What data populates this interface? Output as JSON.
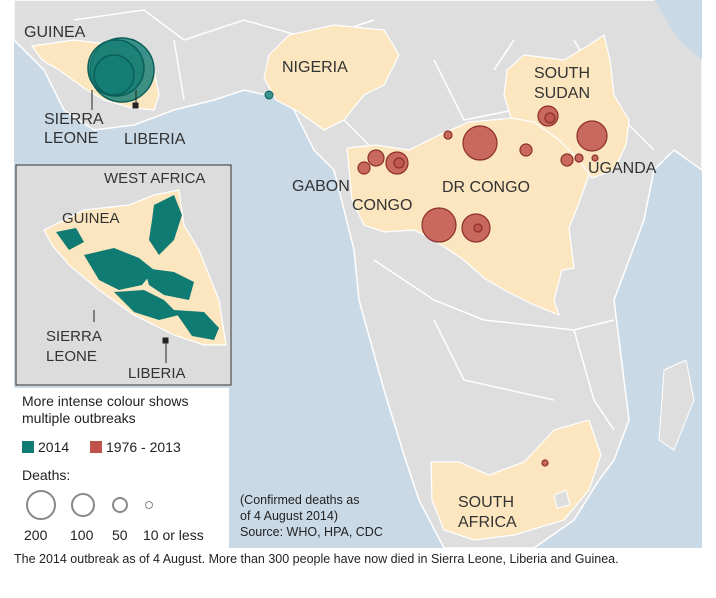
{
  "map": {
    "labels": {
      "guinea": "GUINEA",
      "sierra_leone_1": "SIERRA",
      "sierra_leone_2": "LEONE",
      "liberia": "LIBERIA",
      "nigeria": "NIGERIA",
      "south_sudan_1": "SOUTH",
      "south_sudan_2": "SUDAN",
      "uganda": "UGANDA",
      "gabon": "GABON",
      "dr_congo": "DR CONGO",
      "congo": "CONGO",
      "south_africa_1": "SOUTH",
      "south_africa_2": "AFRICA"
    },
    "inset": {
      "title": "WEST AFRICA",
      "guinea": "GUINEA",
      "sierra_leone_1": "SIERRA",
      "sierra_leone_2": "LEONE",
      "liberia": "LIBERIA"
    }
  },
  "legend": {
    "intensity_line1": "More intense colour shows",
    "intensity_line2": "multiple outbreaks",
    "series": [
      {
        "label": "2014",
        "color": "#0f7b73"
      },
      {
        "label": "1976 - 2013",
        "color": "#c0524c"
      }
    ],
    "deaths_title": "Deaths:",
    "sizes": [
      "200",
      "100",
      "50",
      "10 or less"
    ]
  },
  "source": {
    "line1": "(Confirmed deaths as",
    "line2": "of 4 August 2014)",
    "line3": "Source: WHO, HPA, CDC"
  },
  "caption": "The 2014 outbreak as of 4 August. More than 300 people have now died in Sierra Leone, Liberia and Guinea."
}
